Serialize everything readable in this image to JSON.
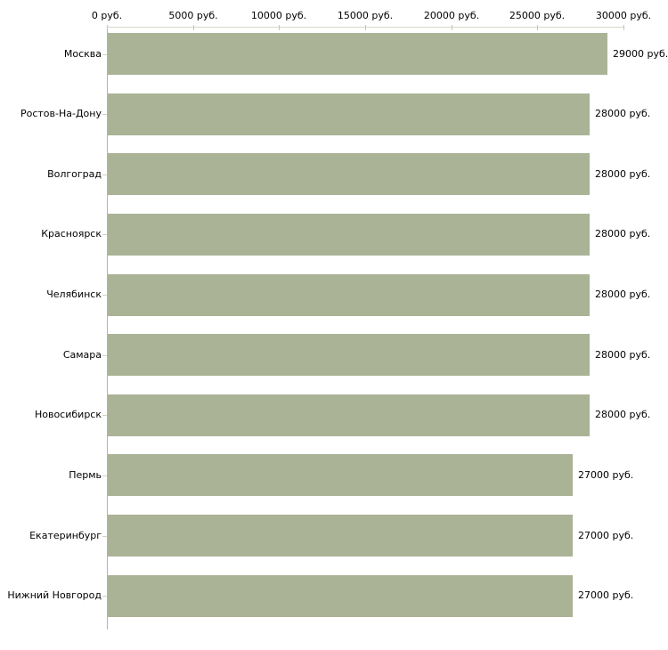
{
  "chart_data": {
    "type": "bar",
    "orientation": "horizontal",
    "title": "",
    "xlabel": "",
    "ylabel": "",
    "categories": [
      "Москва",
      "Ростов-На-Дону",
      "Волгоград",
      "Красноярск",
      "Челябинск",
      "Самара",
      "Новосибирск",
      "Пермь",
      "Екатеринбург",
      "Нижний Новгород"
    ],
    "values": [
      29000,
      28000,
      28000,
      28000,
      28000,
      28000,
      28000,
      27000,
      27000,
      27000
    ],
    "value_labels": [
      "29000 руб.",
      "28000 руб.",
      "28000 руб.",
      "28000 руб.",
      "28000 руб.",
      "28000 руб.",
      "28000 руб.",
      "27000 руб.",
      "27000 руб.",
      "27000 руб."
    ],
    "x_tick_labels": [
      "0 руб.",
      "5000 руб.",
      "10000 руб.",
      "15000 руб.",
      "20000 руб.",
      "25000 руб.",
      "30000 руб."
    ],
    "x_tick_values": [
      0,
      5000,
      10000,
      15000,
      20000,
      25000,
      30000
    ],
    "xlim": [
      0,
      30000
    ],
    "grid": false,
    "legend": "none",
    "axis_position": "top",
    "colors": {
      "bar": "#abb397",
      "x_axis_line": "#d6d6c4",
      "x_tick_mark": "#c6c6ae",
      "y_axis_line": "#b3b3b3",
      "y_tick_mark": "#d2d2bc",
      "text": "#000000",
      "background": "#ffffff"
    }
  }
}
